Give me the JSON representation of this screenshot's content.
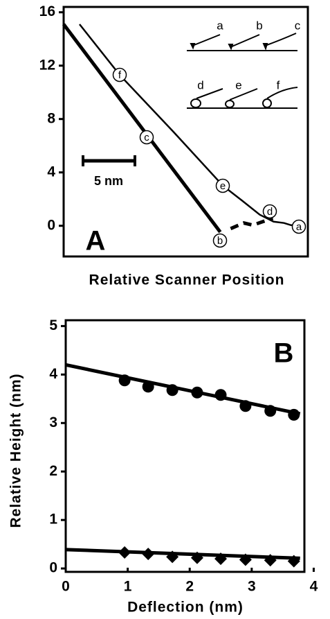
{
  "chart_data": [
    {
      "type": "line",
      "panel_label": "A",
      "xlabel": "Relative Scanner Position",
      "xlim": [
        0,
        23.5
      ],
      "ylim": [
        -2.3,
        16.4
      ],
      "yticks": [
        0,
        4,
        8,
        12,
        16
      ],
      "series": [
        {
          "color": "#000000",
          "width": 5,
          "dashed": false,
          "x": [
            0,
            15.07
          ],
          "values": [
            15.1,
            -0.47
          ]
        },
        {
          "color": "#000000",
          "width": 5,
          "dashed": true,
          "x": [
            16.07,
            17.33,
            18.2,
            20.13
          ],
          "values": [
            -0.21,
            0.21,
            0.05,
            0.57
          ]
        },
        {
          "color": "#000000",
          "width": 2.5,
          "dashed": false,
          "x": [
            1.53,
            5.4,
            10.53,
            15.33,
            17.2,
            18.87,
            20.2,
            21.2,
            21.87,
            22.53
          ],
          "values": [
            15.1,
            11.3,
            7.07,
            3.0,
            1.87,
            0.83,
            0.31,
            0.21,
            0.05,
            0
          ]
        }
      ],
      "annotations": [
        "f",
        "c",
        "e",
        "b",
        "d",
        "a"
      ],
      "scale_bar": "5 nm",
      "inset_labels": [
        "a",
        "b",
        "c",
        "d",
        "e",
        "f"
      ]
    },
    {
      "type": "scatter",
      "panel_label": "B",
      "xlabel": "Deflection (nm)",
      "ylabel": "Relative Height (nm)",
      "xlim": [
        0,
        3.85
      ],
      "ylim": [
        -0.07,
        5.12
      ],
      "xticks": [
        0,
        1,
        2,
        3,
        4
      ],
      "yticks": [
        0,
        1,
        2,
        3,
        4,
        5
      ],
      "series": [
        {
          "marker": "circle",
          "color": "#000000",
          "x": [
            0.95,
            1.33,
            1.72,
            2.12,
            2.5,
            2.9,
            3.3,
            3.68
          ],
          "values": [
            3.88,
            3.75,
            3.68,
            3.63,
            3.58,
            3.35,
            3.25,
            3.17
          ]
        },
        {
          "marker": "diamond",
          "color": "#000000",
          "x": [
            0.95,
            1.33,
            1.72,
            2.12,
            2.5,
            2.9,
            3.3,
            3.68
          ],
          "values": [
            0.33,
            0.3,
            0.24,
            0.22,
            0.2,
            0.18,
            0.17,
            0.15
          ]
        },
        {
          "color": "#000000",
          "width": 5,
          "x": [
            0,
            3.78
          ],
          "values": [
            4.2,
            3.19
          ]
        },
        {
          "color": "#000000",
          "width": 5,
          "x": [
            0,
            3.78
          ],
          "values": [
            0.39,
            0.21
          ]
        }
      ]
    }
  ]
}
